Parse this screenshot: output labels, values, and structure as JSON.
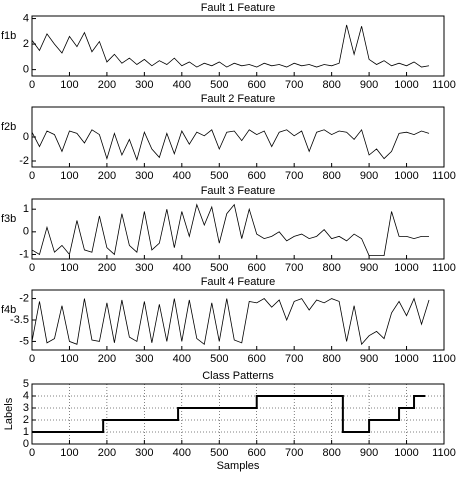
{
  "chart_data": [
    {
      "type": "line",
      "title": "Fault 1 Feature",
      "y_label": "f1b",
      "color": "#000000",
      "grid": false,
      "x": [
        0,
        20,
        40,
        60,
        80,
        100,
        120,
        140,
        160,
        180,
        200,
        220,
        240,
        260,
        280,
        300,
        320,
        340,
        360,
        380,
        400,
        420,
        440,
        460,
        480,
        500,
        520,
        540,
        560,
        580,
        600,
        620,
        640,
        660,
        680,
        700,
        720,
        740,
        760,
        780,
        800,
        820,
        840,
        860,
        880,
        900,
        920,
        940,
        960,
        980,
        1000,
        1020,
        1040,
        1060
      ],
      "values": [
        2.3,
        1.5,
        2.8,
        2.0,
        1.3,
        2.6,
        1.8,
        2.9,
        1.4,
        2.2,
        0.6,
        1.2,
        0.5,
        0.9,
        0.4,
        0.8,
        0.3,
        0.7,
        0.4,
        0.9,
        0.3,
        0.6,
        0.2,
        0.5,
        0.3,
        0.6,
        0.2,
        0.5,
        0.3,
        0.4,
        0.2,
        0.5,
        0.3,
        0.4,
        0.2,
        0.5,
        0.3,
        0.4,
        0.2,
        0.4,
        0.3,
        0.5,
        3.5,
        1.2,
        3.4,
        0.8,
        0.4,
        0.7,
        0.3,
        0.5,
        0.3,
        0.6,
        0.2,
        0.3
      ],
      "xlim": [
        0,
        1100
      ],
      "xticks": [
        0,
        100,
        200,
        300,
        400,
        500,
        600,
        700,
        800,
        900,
        1000,
        1100
      ],
      "ylim": [
        -0.5,
        4.2
      ],
      "yticks": [
        0,
        2,
        4
      ]
    },
    {
      "type": "line",
      "title": "Fault 2 Feature",
      "y_label": "f2b",
      "color": "#000000",
      "grid": false,
      "x": [
        0,
        20,
        40,
        60,
        80,
        100,
        120,
        140,
        160,
        180,
        200,
        220,
        240,
        260,
        280,
        300,
        320,
        340,
        360,
        380,
        400,
        420,
        440,
        460,
        480,
        500,
        520,
        540,
        560,
        580,
        600,
        620,
        640,
        660,
        680,
        700,
        720,
        740,
        760,
        780,
        800,
        820,
        840,
        860,
        880,
        900,
        920,
        940,
        960,
        980,
        1000,
        1020,
        1040,
        1060
      ],
      "values": [
        0.4,
        -0.8,
        0.5,
        0.2,
        -1.2,
        0.5,
        0.3,
        -0.5,
        0.6,
        0.2,
        -1.8,
        0.3,
        -1.5,
        -0.2,
        -1.9,
        0.4,
        -1.0,
        -1.7,
        0.3,
        -1.4,
        0.5,
        -0.6,
        0.4,
        0.1,
        0.6,
        -1.0,
        0.4,
        0.5,
        -0.3,
        0.6,
        0.2,
        0.5,
        -0.8,
        0.4,
        0.6,
        0.1,
        0.5,
        -1.2,
        0.4,
        0.6,
        0.2,
        0.5,
        0.4,
        -0.2,
        0.6,
        -1.5,
        -1.0,
        -1.8,
        -1.2,
        0.3,
        0.4,
        0.2,
        0.5,
        0.3
      ],
      "xlim": [
        0,
        1100
      ],
      "xticks": [
        0,
        100,
        200,
        300,
        400,
        500,
        600,
        700,
        800,
        900,
        1000,
        1100
      ],
      "ylim": [
        -2.5,
        2.5
      ],
      "yticks": [
        -2,
        0
      ]
    },
    {
      "type": "line",
      "title": "Fault 3 Feature",
      "y_label": "f3b",
      "color": "#000000",
      "grid": false,
      "x": [
        0,
        20,
        40,
        60,
        80,
        100,
        120,
        140,
        160,
        180,
        200,
        220,
        240,
        260,
        280,
        300,
        320,
        340,
        360,
        380,
        400,
        420,
        440,
        460,
        480,
        500,
        520,
        540,
        560,
        580,
        600,
        620,
        640,
        660,
        680,
        700,
        720,
        740,
        760,
        780,
        800,
        820,
        840,
        860,
        880,
        900,
        920,
        940,
        960,
        980,
        1000,
        1020,
        1040,
        1060
      ],
      "values": [
        -0.8,
        -1.0,
        0.2,
        -0.9,
        -0.6,
        -1.0,
        0.5,
        -0.8,
        -0.9,
        0.7,
        -0.7,
        -1.0,
        0.8,
        -0.6,
        -0.9,
        0.9,
        -0.8,
        -0.5,
        1.0,
        -0.7,
        0.9,
        -0.2,
        1.2,
        0.3,
        1.1,
        -0.5,
        0.8,
        1.2,
        -0.3,
        1.0,
        -0.1,
        -0.3,
        -0.2,
        0.0,
        -0.4,
        -0.2,
        -0.1,
        -0.3,
        -0.2,
        0.1,
        -0.3,
        -0.2,
        -0.4,
        -0.1,
        -0.3,
        -1.05,
        -1.05,
        -1.05,
        0.9,
        -0.2,
        -0.2,
        -0.3,
        -0.2,
        -0.2
      ],
      "xlim": [
        0,
        1100
      ],
      "xticks": [
        0,
        100,
        200,
        300,
        400,
        500,
        600,
        700,
        800,
        900,
        1000,
        1100
      ],
      "ylim": [
        -1.2,
        1.45
      ],
      "yticks": [
        -1,
        0,
        1
      ]
    },
    {
      "type": "line",
      "title": "Fault 4 Feature",
      "y_label": "f4b",
      "color": "#000000",
      "grid": false,
      "x": [
        0,
        20,
        40,
        60,
        80,
        100,
        120,
        140,
        160,
        180,
        200,
        220,
        240,
        260,
        280,
        300,
        320,
        340,
        360,
        380,
        400,
        420,
        440,
        460,
        480,
        500,
        520,
        540,
        560,
        580,
        600,
        620,
        640,
        660,
        680,
        700,
        720,
        740,
        760,
        780,
        800,
        820,
        840,
        860,
        880,
        900,
        920,
        940,
        960,
        980,
        1000,
        1020,
        1040,
        1060
      ],
      "values": [
        -5.0,
        -2.2,
        -5.1,
        -4.8,
        -2.5,
        -5.0,
        -5.2,
        -2.0,
        -4.9,
        -5.0,
        -2.3,
        -5.1,
        -2.1,
        -4.7,
        -5.0,
        -2.2,
        -5.1,
        -2.4,
        -5.0,
        -2.0,
        -5.0,
        -2.1,
        -4.8,
        -5.2,
        -2.3,
        -5.0,
        -2.0,
        -4.9,
        -5.1,
        -2.2,
        -2.3,
        -2.0,
        -2.6,
        -2.1,
        -3.5,
        -2.2,
        -2.0,
        -2.8,
        -2.1,
        -2.3,
        -2.0,
        -2.2,
        -5.0,
        -2.5,
        -5.2,
        -4.6,
        -4.3,
        -4.8,
        -3.0,
        -2.2,
        -3.2,
        -2.0,
        -3.8,
        -2.1
      ],
      "xlim": [
        0,
        1100
      ],
      "xticks": [
        0,
        100,
        200,
        300,
        400,
        500,
        600,
        700,
        800,
        900,
        1000,
        1100
      ],
      "ylim": [
        -5.6,
        -1.4
      ],
      "yticks": [
        -5,
        -3.5,
        -2
      ]
    },
    {
      "type": "line",
      "title": "Class Patterns",
      "y_label": "Labels",
      "x_label": "Samples",
      "color": "#000000",
      "grid": true,
      "line_width": 2,
      "x": [
        0,
        190,
        190,
        390,
        390,
        600,
        600,
        830,
        830,
        900,
        900,
        980,
        980,
        1020,
        1020,
        1050
      ],
      "values": [
        1,
        1,
        2,
        2,
        3,
        3,
        4,
        4,
        1,
        1,
        2,
        2,
        3,
        3,
        4,
        4
      ],
      "xlim": [
        0,
        1100
      ],
      "xticks": [
        0,
        100,
        200,
        300,
        400,
        500,
        600,
        700,
        800,
        900,
        1000,
        1100
      ],
      "ylim": [
        0,
        5
      ],
      "yticks": [
        0,
        1,
        2,
        3,
        4,
        5
      ]
    }
  ]
}
